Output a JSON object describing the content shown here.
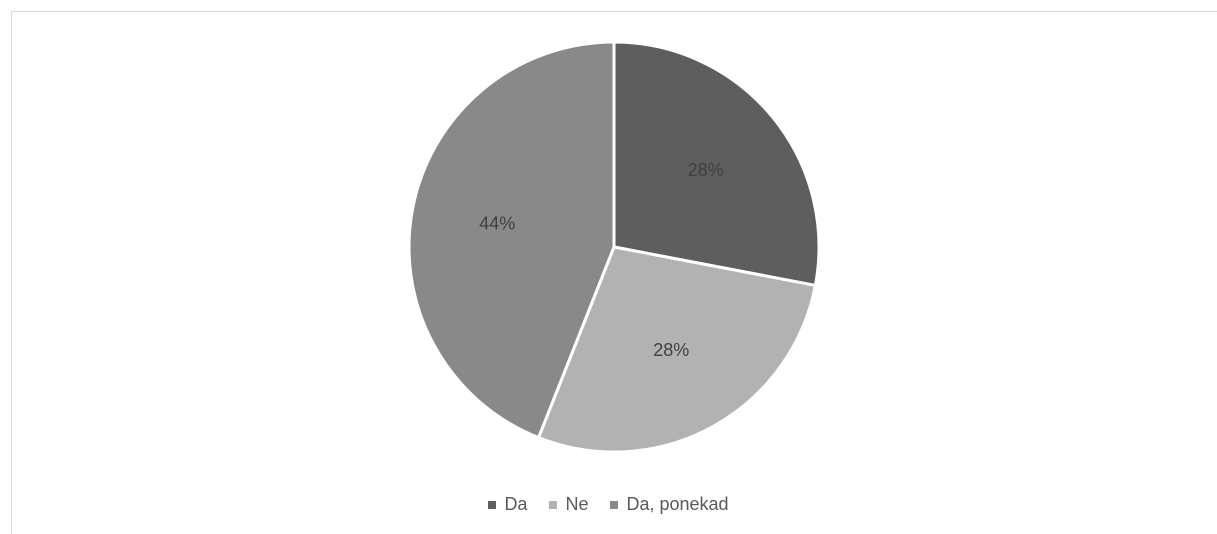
{
  "chart_data": {
    "type": "pie",
    "categories": [
      "Da",
      "Ne",
      "Da, ponekad"
    ],
    "values": [
      28,
      28,
      44
    ],
    "value_labels": [
      "28%",
      "28%",
      "44%"
    ],
    "colors": [
      "#5e5e5e",
      "#b2b2b2",
      "#898989"
    ],
    "label_colors": [
      "#3f3f3f",
      "#3f3f3f",
      "#3f3f3f"
    ],
    "start_angle_deg": 0,
    "direction": "clockwise",
    "legend_position": "bottom",
    "title": ""
  }
}
